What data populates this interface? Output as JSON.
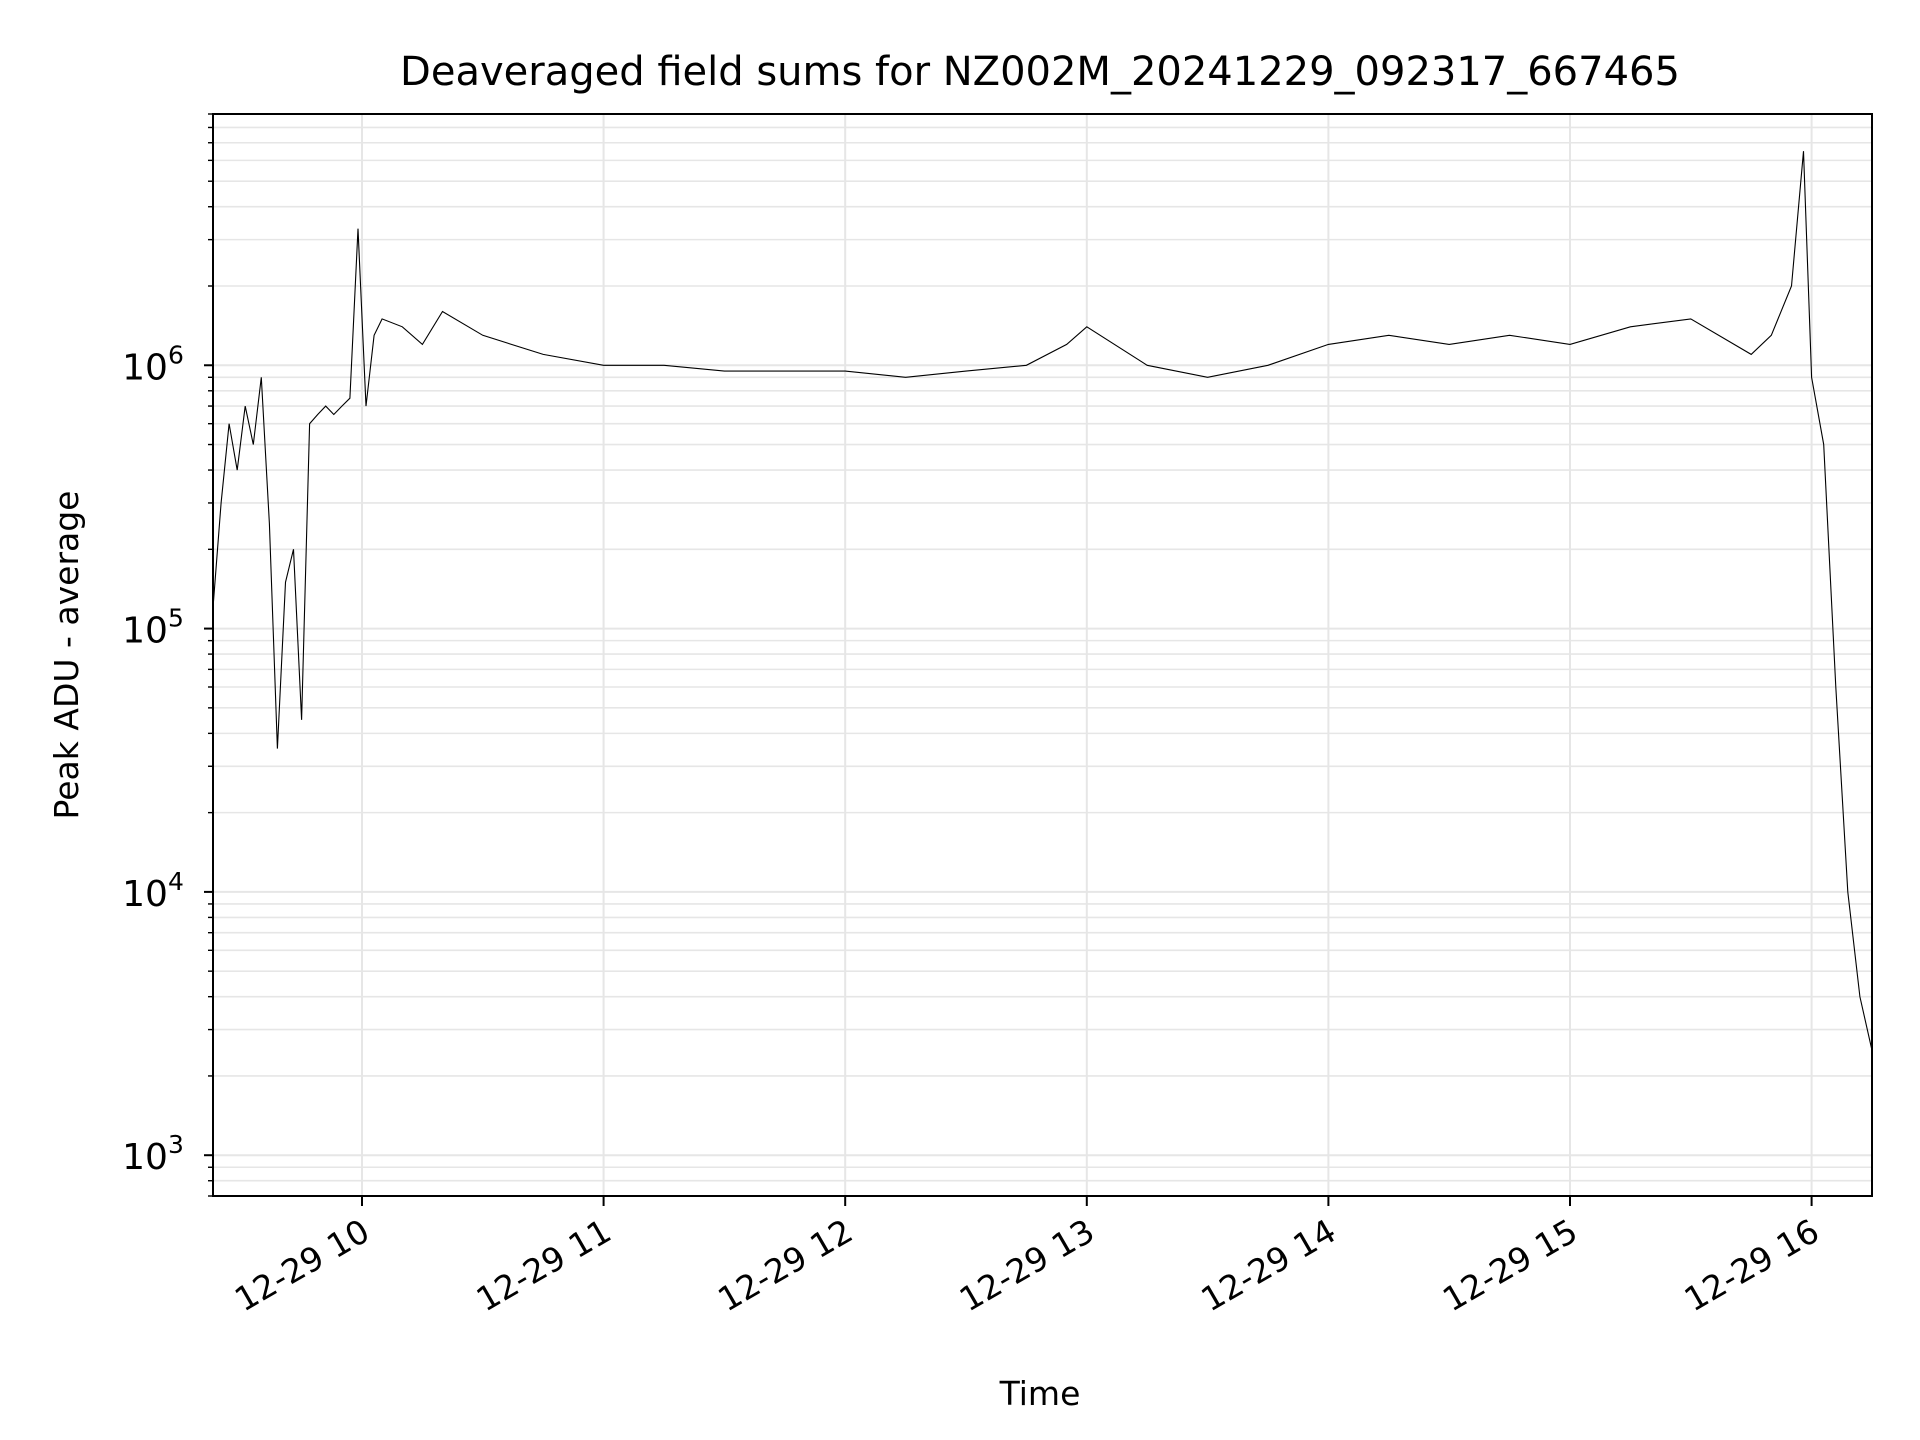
{
  "chart_data": {
    "type": "line",
    "title": "Deaveraged field sums for NZ002M_20241229_092317_667465",
    "xlabel": "Time",
    "ylabel": "Peak ADU - average",
    "yscale": "log",
    "xlim": [
      "2024-12-29 09:23",
      "2024-12-29 16:15"
    ],
    "ylim": [
      700,
      9000000
    ],
    "grid": true,
    "grid_minor": true,
    "line_color": "#000000",
    "x_ticks": [
      {
        "value": "2024-12-29 10:00",
        "label": "12-29 10"
      },
      {
        "value": "2024-12-29 11:00",
        "label": "12-29 11"
      },
      {
        "value": "2024-12-29 12:00",
        "label": "12-29 12"
      },
      {
        "value": "2024-12-29 13:00",
        "label": "12-29 13"
      },
      {
        "value": "2024-12-29 14:00",
        "label": "12-29 14"
      },
      {
        "value": "2024-12-29 15:00",
        "label": "12-29 15"
      },
      {
        "value": "2024-12-29 16:00",
        "label": "12-29 16"
      }
    ],
    "y_ticks": [
      {
        "value": 1000,
        "base": "10",
        "exp": "3"
      },
      {
        "value": 10000,
        "base": "10",
        "exp": "4"
      },
      {
        "value": 100000,
        "base": "10",
        "exp": "5"
      },
      {
        "value": 1000000,
        "base": "10",
        "exp": "6"
      }
    ],
    "series": [
      {
        "x": [
          "2024-12-29 09:23",
          "2024-12-29 09:25",
          "2024-12-29 09:27",
          "2024-12-29 09:29",
          "2024-12-29 09:31",
          "2024-12-29 09:33",
          "2024-12-29 09:35",
          "2024-12-29 09:37",
          "2024-12-29 09:39",
          "2024-12-29 09:41",
          "2024-12-29 09:43",
          "2024-12-29 09:45",
          "2024-12-29 09:47",
          "2024-12-29 09:49",
          "2024-12-29 09:51",
          "2024-12-29 09:53",
          "2024-12-29 09:55",
          "2024-12-29 09:57",
          "2024-12-29 09:59",
          "2024-12-29 10:01",
          "2024-12-29 10:03",
          "2024-12-29 10:05",
          "2024-12-29 10:10",
          "2024-12-29 10:15",
          "2024-12-29 10:20",
          "2024-12-29 10:30",
          "2024-12-29 10:45",
          "2024-12-29 11:00",
          "2024-12-29 11:15",
          "2024-12-29 11:30",
          "2024-12-29 11:45",
          "2024-12-29 12:00",
          "2024-12-29 12:15",
          "2024-12-29 12:30",
          "2024-12-29 12:45",
          "2024-12-29 12:55",
          "2024-12-29 13:00",
          "2024-12-29 13:15",
          "2024-12-29 13:30",
          "2024-12-29 13:45",
          "2024-12-29 14:00",
          "2024-12-29 14:15",
          "2024-12-29 14:30",
          "2024-12-29 14:45",
          "2024-12-29 15:00",
          "2024-12-29 15:15",
          "2024-12-29 15:30",
          "2024-12-29 15:45",
          "2024-12-29 15:50",
          "2024-12-29 15:55",
          "2024-12-29 15:58",
          "2024-12-29 16:00",
          "2024-12-29 16:03",
          "2024-12-29 16:06",
          "2024-12-29 16:09",
          "2024-12-29 16:12",
          "2024-12-29 16:15"
        ],
        "y": [
          120000,
          300000,
          600000,
          400000,
          700000,
          500000,
          900000,
          250000,
          35000,
          150000,
          200000,
          45000,
          600000,
          650000,
          700000,
          650000,
          700000,
          750000,
          3300000,
          700000,
          1300000,
          1500000,
          1400000,
          1200000,
          1600000,
          1300000,
          1100000,
          1000000,
          1000000,
          950000,
          950000,
          950000,
          900000,
          950000,
          1000000,
          1200000,
          1400000,
          1000000,
          900000,
          1000000,
          1200000,
          1300000,
          1200000,
          1300000,
          1200000,
          1400000,
          1500000,
          1100000,
          1300000,
          2000000,
          6500000,
          900000,
          500000,
          60000,
          10000,
          4000,
          2500
        ]
      }
    ]
  }
}
